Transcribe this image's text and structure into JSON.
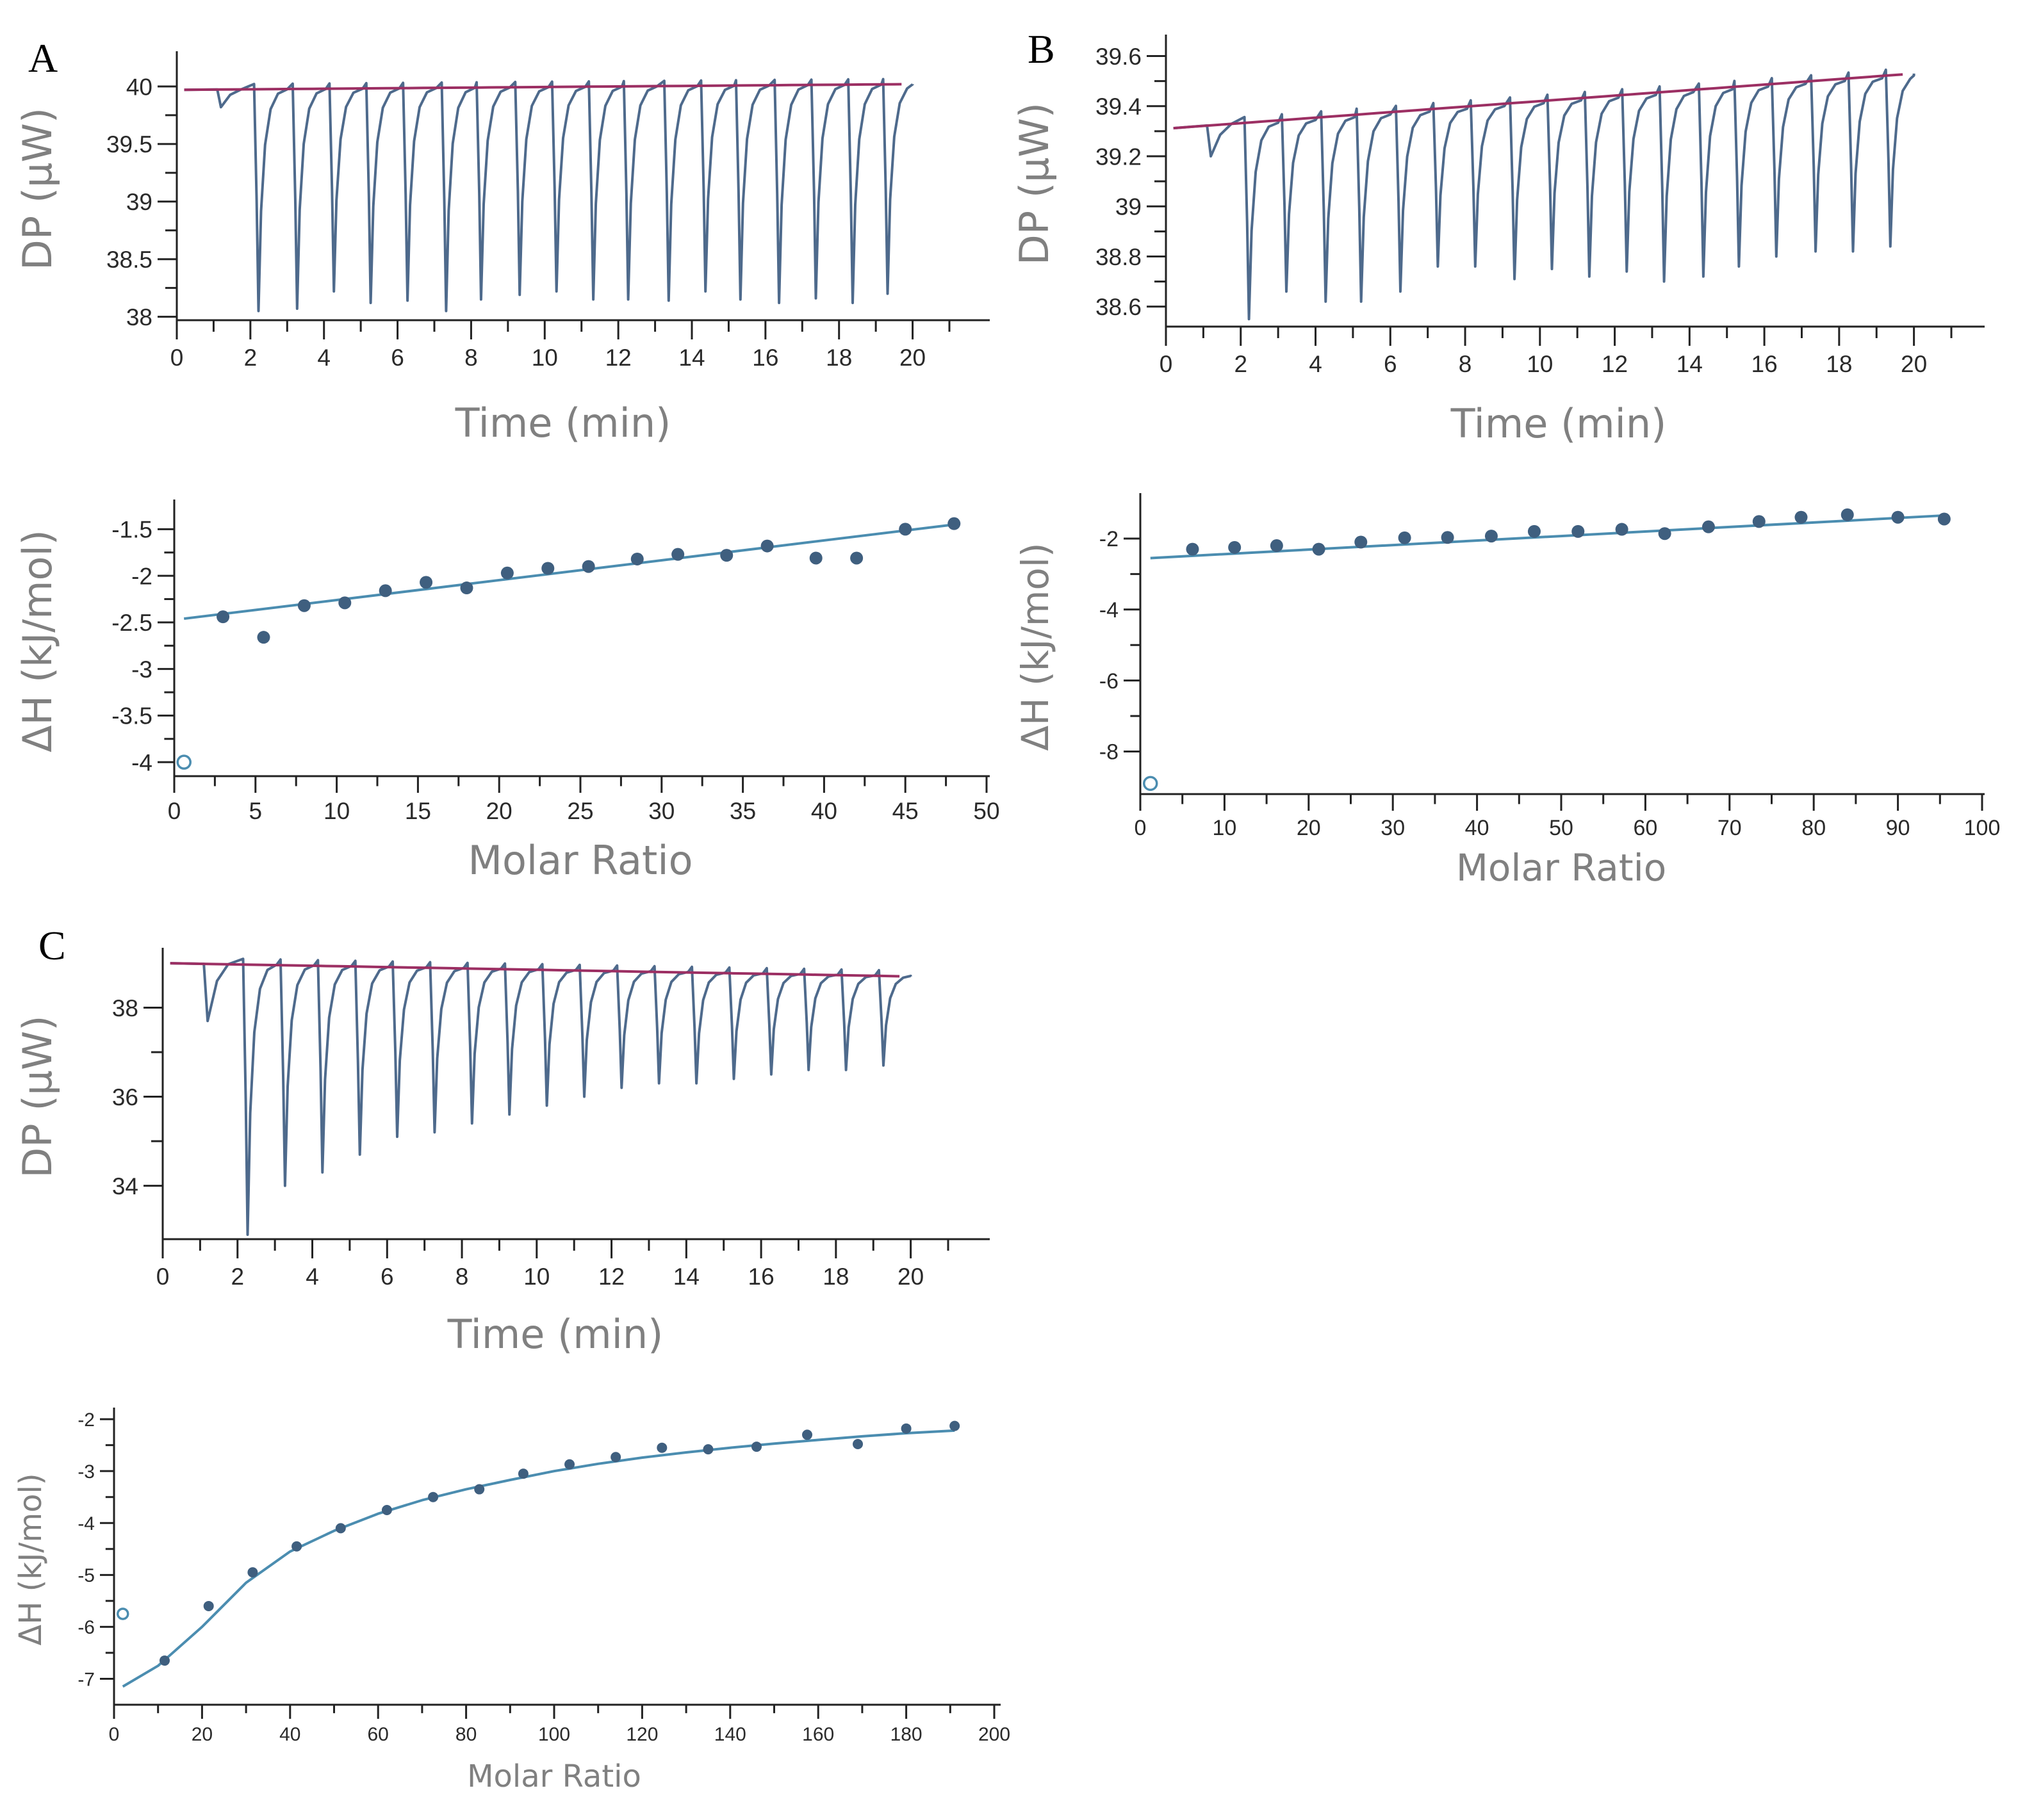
{
  "colors": {
    "trace": "#4e6a8c",
    "baseline": "#9c2f63",
    "fit": "#4b8db0",
    "point": "#3f5f7f",
    "axis": "#222222",
    "title": "#808080"
  },
  "chart_data": [
    {
      "id": "A-top",
      "panel": "A",
      "type": "line",
      "title": "",
      "xlabel": "Time (min)",
      "ylabel": "DP (μW)",
      "xlim": [
        0,
        21
      ],
      "ylim": [
        37.97,
        40.25
      ],
      "xticks": [
        0,
        2,
        4,
        6,
        8,
        10,
        12,
        14,
        16,
        18,
        20
      ],
      "yticks": [
        38,
        38.5,
        39,
        39.5,
        40
      ],
      "ytick_labels": [
        "38",
        "38.5",
        "39",
        "39.5",
        "40"
      ],
      "baseline": {
        "start": 39.97,
        "end": 40.02
      },
      "first_injection": {
        "time": 1.15,
        "depth": 39.82
      },
      "injection_times": [
        2.15,
        3.2,
        4.2,
        5.2,
        6.2,
        7.25,
        8.2,
        9.25,
        10.25,
        11.25,
        12.2,
        13.3,
        14.3,
        15.25,
        16.3,
        17.3,
        18.3,
        19.25
      ],
      "injection_minima": [
        38.05,
        38.07,
        38.22,
        38.12,
        38.14,
        38.05,
        38.15,
        38.19,
        38.22,
        38.15,
        38.15,
        38.14,
        38.22,
        38.15,
        38.12,
        38.16,
        38.12,
        38.2
      ]
    },
    {
      "id": "A-bottom",
      "panel": "A",
      "type": "scatter",
      "title": "",
      "xlabel": "Molar Ratio",
      "ylabel": "ΔH (kJ/mol)",
      "xlim": [
        0,
        50
      ],
      "ylim": [
        -4.15,
        -1.25
      ],
      "xticks": [
        0,
        5,
        10,
        15,
        20,
        25,
        30,
        35,
        40,
        45,
        50
      ],
      "yticks": [
        -4,
        -3.5,
        -3,
        -2.5,
        -2,
        -1.5
      ],
      "ytick_labels": [
        "-4",
        "-3.5",
        "-3",
        "-2.5",
        "-2",
        "-1.5"
      ],
      "excluded_point": {
        "x": 0.6,
        "y": -4.0
      },
      "x": [
        3.0,
        5.5,
        8.0,
        10.5,
        13.0,
        15.5,
        18.0,
        20.5,
        23.0,
        25.5,
        28.5,
        31.0,
        34.0,
        36.5,
        39.5,
        42.0,
        45.0,
        48.0
      ],
      "y": [
        -2.44,
        -2.66,
        -2.32,
        -2.29,
        -2.16,
        -2.07,
        -2.13,
        -1.97,
        -1.92,
        -1.9,
        -1.82,
        -1.77,
        -1.78,
        -1.68,
        -1.81,
        -1.81,
        -1.5,
        -1.44
      ],
      "fit": {
        "from": [
          0.6,
          -2.46
        ],
        "to": [
          48.0,
          -1.45
        ]
      }
    },
    {
      "id": "B-top",
      "panel": "B",
      "type": "line",
      "title": "",
      "xlabel": "Time (min)",
      "ylabel": "DP (μW)",
      "xlim": [
        0,
        21
      ],
      "ylim": [
        38.52,
        39.66
      ],
      "xticks": [
        0,
        2,
        4,
        6,
        8,
        10,
        12,
        14,
        16,
        18,
        20
      ],
      "yticks": [
        38.6,
        38.8,
        39,
        39.2,
        39.4,
        39.6
      ],
      "ytick_labels": [
        "38.6",
        "38.8",
        "39",
        "39.2",
        "39.4",
        "39.6"
      ],
      "baseline": {
        "start": 39.31,
        "end": 39.53
      },
      "first_injection": {
        "time": 1.15,
        "depth": 39.2
      },
      "injection_times": [
        2.15,
        3.15,
        4.2,
        5.15,
        6.2,
        7.2,
        8.2,
        9.25,
        10.25,
        11.25,
        12.25,
        13.25,
        14.3,
        15.25,
        16.25,
        17.3,
        18.3,
        19.3
      ],
      "injection_minima": [
        38.55,
        38.66,
        38.62,
        38.62,
        38.66,
        38.76,
        38.76,
        38.71,
        38.75,
        38.72,
        38.74,
        38.7,
        38.72,
        38.76,
        38.8,
        38.82,
        38.82,
        38.84
      ]
    },
    {
      "id": "B-bottom",
      "panel": "B",
      "type": "scatter",
      "title": "",
      "xlabel": "Molar Ratio",
      "ylabel": "ΔH (kJ/mol)",
      "xlim": [
        0,
        100
      ],
      "ylim": [
        -9.2,
        -0.9
      ],
      "xticks": [
        0,
        10,
        20,
        30,
        40,
        50,
        60,
        70,
        80,
        90,
        100
      ],
      "yticks": [
        -8,
        -6,
        -4,
        -2
      ],
      "ytick_labels": [
        "-8",
        "-6",
        "-4",
        "-2"
      ],
      "excluded_point": {
        "x": 1.2,
        "y": -8.9
      },
      "x": [
        6.2,
        11.2,
        16.2,
        21.2,
        26.2,
        31.4,
        36.5,
        41.7,
        46.8,
        52.0,
        57.2,
        62.3,
        67.5,
        73.5,
        78.5,
        84.0,
        90.0,
        95.5
      ],
      "y": [
        -2.3,
        -2.25,
        -2.2,
        -2.3,
        -2.1,
        -1.98,
        -1.97,
        -1.93,
        -1.8,
        -1.8,
        -1.74,
        -1.86,
        -1.67,
        -1.52,
        -1.4,
        -1.33,
        -1.4,
        -1.45
      ],
      "fit": {
        "from": [
          1.2,
          -2.55
        ],
        "to": [
          95.5,
          -1.35
        ]
      }
    },
    {
      "id": "C-top",
      "panel": "C",
      "type": "line",
      "title": "",
      "xlabel": "Time (min)",
      "ylabel": "DP (μW)",
      "xlim": [
        0,
        21
      ],
      "ylim": [
        32.8,
        39.2
      ],
      "xticks": [
        0,
        2,
        4,
        6,
        8,
        10,
        12,
        14,
        16,
        18,
        20
      ],
      "yticks": [
        34,
        36,
        38
      ],
      "ytick_labels": [
        "34",
        "36",
        "38"
      ],
      "baseline": {
        "start": 39.0,
        "end": 38.7
      },
      "first_injection": {
        "time": 1.15,
        "depth": 37.7
      },
      "injection_times": [
        2.2,
        3.2,
        4.2,
        5.2,
        6.2,
        7.2,
        8.2,
        9.2,
        10.2,
        11.2,
        12.2,
        13.2,
        14.2,
        15.2,
        16.2,
        17.2,
        18.2,
        19.2
      ],
      "injection_minima": [
        32.9,
        34.0,
        34.3,
        34.7,
        35.1,
        35.2,
        35.4,
        35.6,
        35.8,
        36.0,
        36.2,
        36.3,
        36.3,
        36.4,
        36.5,
        36.6,
        36.6,
        36.7
      ]
    },
    {
      "id": "C-bottom",
      "panel": "C",
      "type": "scatter",
      "title": "",
      "xlabel": "Molar Ratio",
      "ylabel": "ΔH (kJ/mol)",
      "xlim": [
        0,
        200
      ],
      "ylim": [
        -7.5,
        -1.9
      ],
      "xticks": [
        0,
        20,
        40,
        60,
        80,
        100,
        120,
        140,
        160,
        180,
        200
      ],
      "yticks": [
        -7,
        -6,
        -5,
        -4,
        -3,
        -2
      ],
      "ytick_labels": [
        "-7",
        "-6",
        "-5",
        "-4",
        "-3",
        "-2"
      ],
      "excluded_point": {
        "x": 2.0,
        "y": -5.75
      },
      "x": [
        11.5,
        21.5,
        31.5,
        41.5,
        51.5,
        62.0,
        72.5,
        83.0,
        93.0,
        103.5,
        114.0,
        124.5,
        135.0,
        146.0,
        157.5,
        169.0,
        180.0,
        191.0
      ],
      "y": [
        -6.65,
        -5.6,
        -4.95,
        -4.45,
        -4.1,
        -3.75,
        -3.5,
        -3.35,
        -3.05,
        -2.87,
        -2.73,
        -2.55,
        -2.58,
        -2.53,
        -2.3,
        -2.48,
        -2.18,
        -2.13
      ],
      "fit_curve": {
        "x": [
          2,
          10,
          20,
          30,
          40,
          50,
          60,
          70,
          80,
          90,
          100,
          110,
          120,
          130,
          140,
          150,
          160,
          170,
          180,
          191
        ],
        "y": [
          -7.15,
          -6.75,
          -6.0,
          -5.15,
          -4.55,
          -4.15,
          -3.82,
          -3.56,
          -3.35,
          -3.17,
          -3.0,
          -2.86,
          -2.74,
          -2.64,
          -2.55,
          -2.47,
          -2.4,
          -2.33,
          -2.27,
          -2.22
        ]
      }
    }
  ],
  "panel_labels": [
    {
      "key": "A",
      "text": "A"
    },
    {
      "key": "B",
      "text": "B"
    },
    {
      "key": "C",
      "text": "C"
    }
  ]
}
